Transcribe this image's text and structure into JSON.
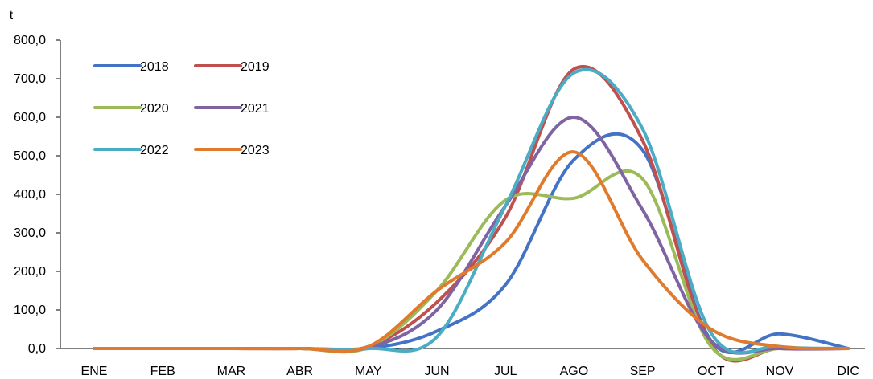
{
  "chart_data": {
    "type": "line",
    "unit_label": "t",
    "categories": [
      "ENE",
      "FEB",
      "MAR",
      "ABR",
      "MAY",
      "JUN",
      "JUL",
      "AGO",
      "SEP",
      "OCT",
      "NOV",
      "DIC"
    ],
    "y_ticks": [
      "0,0",
      "100,0",
      "200,0",
      "300,0",
      "400,0",
      "500,0",
      "600,0",
      "700,0",
      "800,0"
    ],
    "ylim": [
      0,
      800
    ],
    "grid": false,
    "legend_position": "top-left",
    "series": [
      {
        "name": "2018",
        "color": "#4472C4",
        "values": [
          0,
          0,
          0,
          0,
          0,
          45,
          165,
          490,
          515,
          20,
          38,
          0
        ]
      },
      {
        "name": "2019",
        "color": "#C0504D",
        "values": [
          0,
          0,
          0,
          0,
          5,
          120,
          340,
          725,
          540,
          10,
          0,
          0
        ]
      },
      {
        "name": "2020",
        "color": "#9BBB59",
        "values": [
          0,
          0,
          0,
          0,
          3,
          150,
          385,
          390,
          440,
          5,
          0,
          0
        ]
      },
      {
        "name": "2021",
        "color": "#8064A2",
        "values": [
          0,
          0,
          0,
          0,
          2,
          100,
          370,
          600,
          360,
          20,
          0,
          0
        ]
      },
      {
        "name": "2022",
        "color": "#4BACC6",
        "values": [
          0,
          0,
          0,
          0,
          0,
          30,
          370,
          715,
          570,
          40,
          5,
          0
        ]
      },
      {
        "name": "2023",
        "color": "#E07B2D",
        "values": [
          0,
          0,
          0,
          0,
          5,
          150,
          275,
          510,
          230,
          50,
          5,
          0
        ]
      }
    ]
  }
}
